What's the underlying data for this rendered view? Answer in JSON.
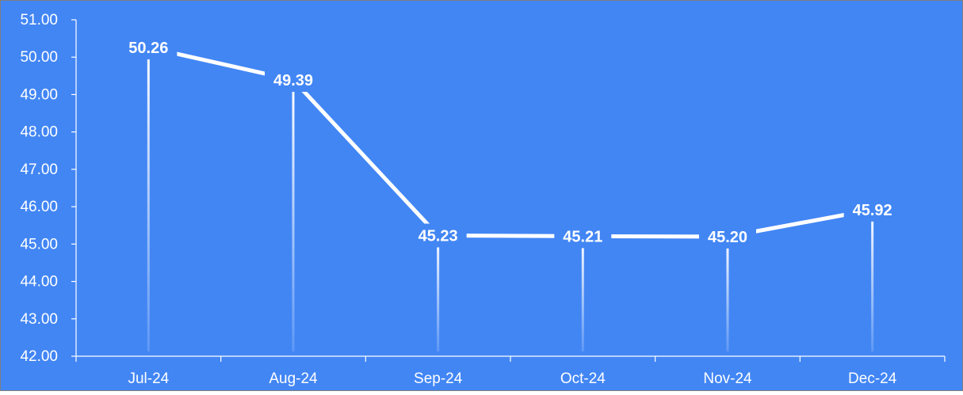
{
  "colors": {
    "background": "#4286f4",
    "axis": "#ffffff",
    "line": "#ffffff",
    "text": "#ffffff",
    "frame": "#7f7f7f"
  },
  "chart_data": {
    "type": "line",
    "title": "",
    "xlabel": "",
    "ylabel": "",
    "categories": [
      "Jul-24",
      "Aug-24",
      "Sep-24",
      "Oct-24",
      "Nov-24",
      "Dec-24"
    ],
    "values": [
      50.26,
      49.39,
      45.23,
      45.21,
      45.2,
      45.92
    ],
    "data_labels": [
      "50.26",
      "49.39",
      "45.23",
      "45.21",
      "45.20",
      "45.92"
    ],
    "ylim": [
      42,
      51
    ],
    "yticks": [
      42,
      43,
      44,
      45,
      46,
      47,
      48,
      49,
      50,
      51
    ],
    "ytick_labels": [
      "42.00",
      "43.00",
      "44.00",
      "45.00",
      "46.00",
      "47.00",
      "48.00",
      "49.00",
      "50.00",
      "51.00"
    ],
    "drop_lines": true,
    "grid": false,
    "legend": "none"
  }
}
